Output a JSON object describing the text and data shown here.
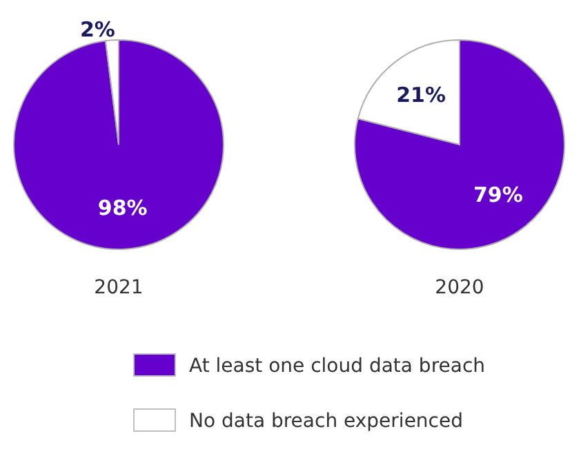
{
  "chart_data": [
    {
      "type": "pie",
      "title": "2021",
      "categories": [
        "At least one cloud data breach",
        "No data breach experienced"
      ],
      "values": [
        98,
        2
      ],
      "colors": [
        "#6600cc",
        "#ffffff"
      ],
      "value_labels": [
        "98%",
        "2%"
      ],
      "legend": "bottom"
    },
    {
      "type": "pie",
      "title": "2020",
      "categories": [
        null,
        null
      ],
      "values": [
        79,
        21
      ],
      "colors": [
        "#6600cc",
        "#ffffff"
      ],
      "value_labels": [
        "79%",
        "21%"
      ],
      "legend": false
    }
  ]
}
